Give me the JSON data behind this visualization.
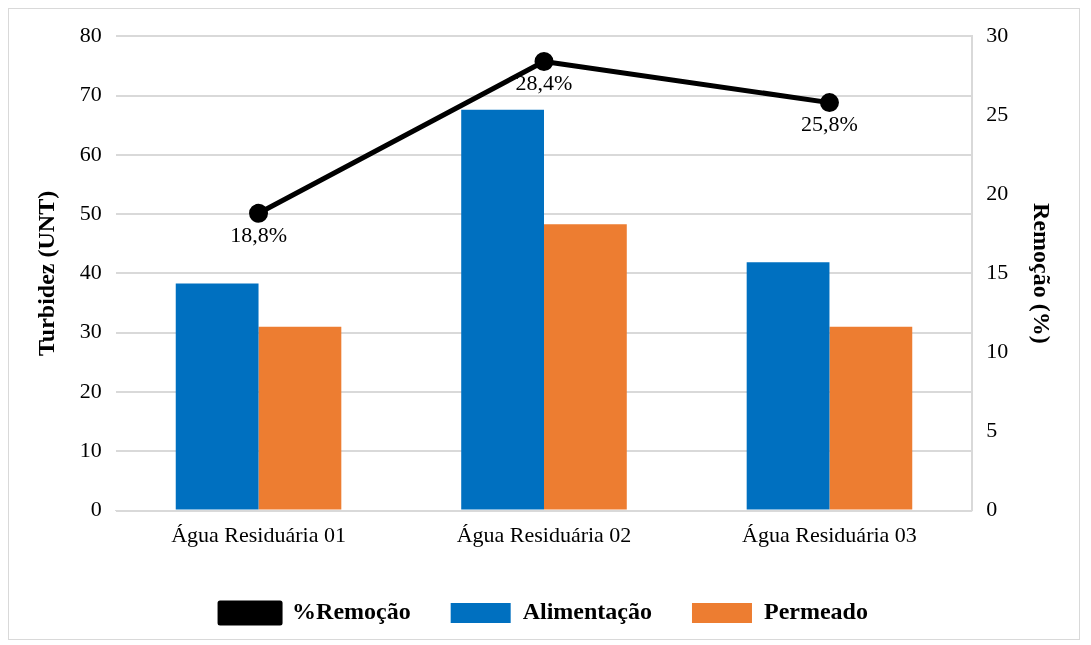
{
  "chart_data": {
    "type": "bar",
    "ylabel": "Turbidez (UNT)",
    "y2label": "Remoção (%)",
    "categories": [
      "Água Residuária 01",
      "Água Residuária 02",
      "Água Residuária 03"
    ],
    "series": [
      {
        "name": "Alimentação",
        "color": "#0070c0",
        "values": [
          38.3,
          67.6,
          41.9
        ]
      },
      {
        "name": "Permeado",
        "color": "#ed7d31",
        "values": [
          31.0,
          48.3,
          31.0
        ]
      },
      {
        "name": "%Remoção",
        "type": "line",
        "axis": "y2",
        "color": "#000000",
        "values": [
          18.8,
          28.4,
          25.8
        ],
        "value_labels": [
          "18,8%",
          "28,4%",
          "25,8%"
        ]
      }
    ],
    "ylim": [
      0,
      80
    ],
    "yticks": [
      0,
      10,
      20,
      30,
      40,
      50,
      60,
      70,
      80
    ],
    "y2lim": [
      0,
      30
    ],
    "y2ticks": [
      0,
      5,
      10,
      15,
      20,
      25,
      30
    ],
    "grid": "y",
    "legend": "bottom",
    "marker": "circle",
    "line_style": "solid"
  }
}
